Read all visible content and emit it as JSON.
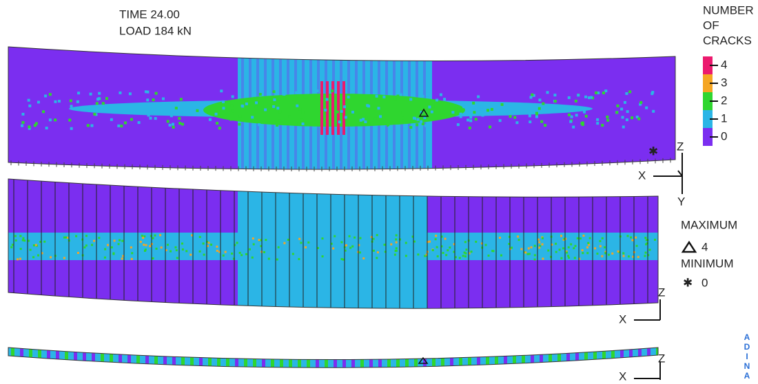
{
  "header": {
    "time": "TIME 24.00",
    "load": "LOAD 184 kN"
  },
  "legend": {
    "title": [
      "NUMBER",
      "OF",
      "CRACKS"
    ],
    "items": [
      {
        "label": "4",
        "color": "#ec1a6e"
      },
      {
        "label": "3",
        "color": "#f5a623"
      },
      {
        "label": "2",
        "color": "#2fd62f"
      },
      {
        "label": "1",
        "color": "#2bb5e6"
      },
      {
        "label": "0",
        "color": "#7b2ef0"
      }
    ]
  },
  "extremes": {
    "maximum_label": "MAXIMUM",
    "maximum_value": "4",
    "minimum_label": "MINIMUM",
    "minimum_value": "0"
  },
  "triads": [
    {
      "z": "Z",
      "x": "X",
      "y": "Y"
    },
    {
      "z": "Z",
      "x": "X"
    },
    {
      "z": "Z",
      "x": "X"
    }
  ],
  "logo": [
    "A",
    "D",
    "I",
    "N",
    "A"
  ]
}
